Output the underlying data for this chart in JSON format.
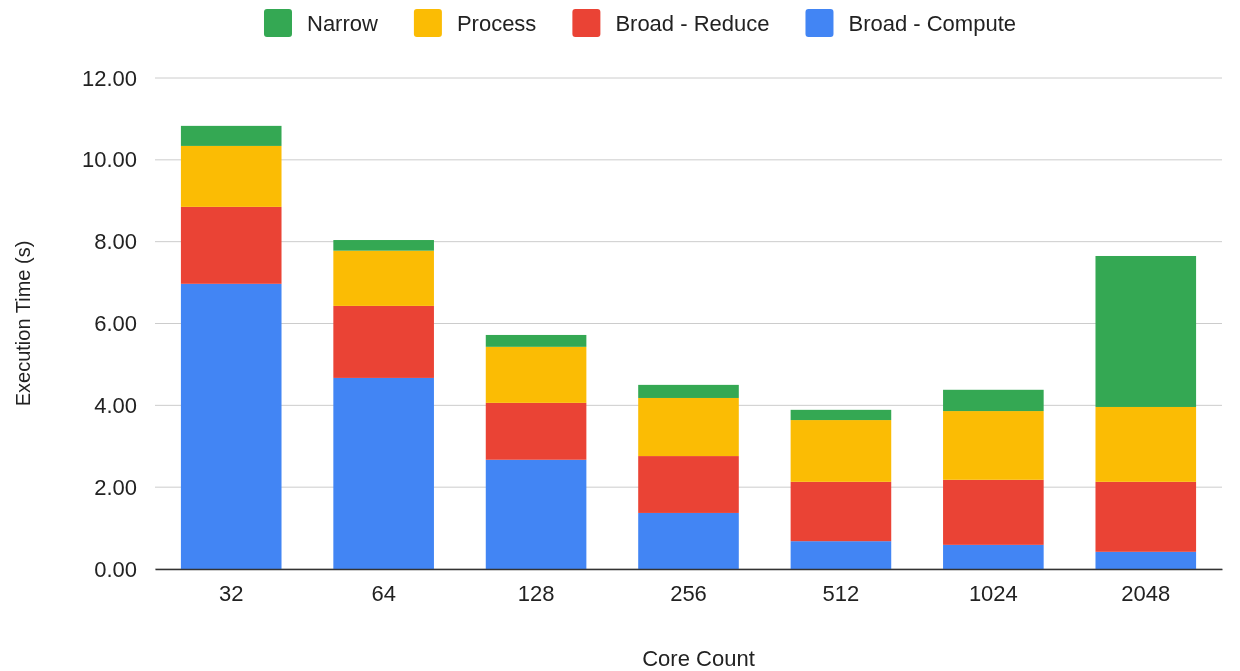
{
  "chart_data": {
    "type": "bar",
    "stacked": true,
    "xlabel": "Core Count",
    "ylabel": "Execution Time (s)",
    "categories": [
      "32",
      "64",
      "128",
      "256",
      "512",
      "1024",
      "2048"
    ],
    "series": [
      {
        "name": "Broad - Compute",
        "color": "#4285f4",
        "values": [
          6.97,
          4.67,
          2.67,
          1.37,
          0.68,
          0.59,
          0.42
        ]
      },
      {
        "name": "Broad - Reduce",
        "color": "#ea4335",
        "values": [
          1.88,
          1.76,
          1.39,
          1.39,
          1.45,
          1.59,
          1.71
        ]
      },
      {
        "name": "Process",
        "color": "#fbbc04",
        "values": [
          1.49,
          1.35,
          1.37,
          1.42,
          1.51,
          1.68,
          1.83
        ]
      },
      {
        "name": "Narrow",
        "color": "#34a853",
        "values": [
          0.49,
          0.26,
          0.29,
          0.32,
          0.25,
          0.52,
          3.69
        ]
      }
    ],
    "ylim": [
      0,
      12
    ],
    "yticks": [
      {
        "value": 0,
        "label": "0.00"
      },
      {
        "value": 2,
        "label": "2.00"
      },
      {
        "value": 4,
        "label": "4.00"
      },
      {
        "value": 6,
        "label": "6.00"
      },
      {
        "value": 8,
        "label": "8.00"
      },
      {
        "value": 10,
        "label": "10.00"
      },
      {
        "value": 12,
        "label": "12.00"
      }
    ],
    "grid": "y",
    "legend": "top"
  }
}
